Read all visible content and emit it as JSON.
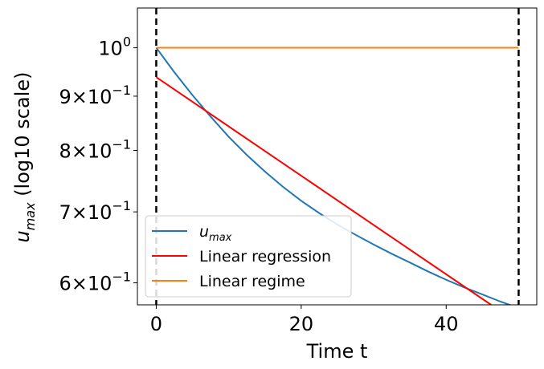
{
  "chart_data": {
    "type": "line",
    "title": "",
    "xlabel": "Time t",
    "ylabel": {
      "base": "u",
      "sub": "max",
      "rest": " (log10 scale)"
    },
    "xlim": [
      -2.6,
      52.5
    ],
    "ylim": [
      0.572,
      1.09
    ],
    "yscale": "log",
    "grid": false,
    "legend_position": "lower-left",
    "x_ticks": [
      {
        "value": 0,
        "label": "0"
      },
      {
        "value": 20,
        "label": "20"
      },
      {
        "value": 40,
        "label": "40"
      }
    ],
    "y_ticks": [
      {
        "value": 1.0,
        "mant": "",
        "base": "10",
        "exp": "0"
      },
      {
        "value": 0.9,
        "mant": "9",
        "base": "10",
        "exp": "−1"
      },
      {
        "value": 0.8,
        "mant": "8",
        "base": "10",
        "exp": "−1"
      },
      {
        "value": 0.7,
        "mant": "7",
        "base": "10",
        "exp": "−1"
      },
      {
        "value": 0.6,
        "mant": "6",
        "base": "10",
        "exp": "−1"
      }
    ],
    "vlines": [
      0,
      50
    ],
    "series": [
      {
        "key": "umax",
        "name": {
          "base": "u",
          "sub": "max"
        },
        "color": "#1f77b4",
        "x": [
          0,
          2.5,
          5,
          7.5,
          10,
          12.5,
          15,
          17.5,
          20,
          22.5,
          25,
          27.5,
          30,
          32.5,
          35,
          37.5,
          40,
          42.5,
          45,
          47.5,
          50
        ],
        "y": [
          1.0,
          0.948,
          0.902,
          0.861,
          0.824,
          0.792,
          0.764,
          0.739,
          0.717,
          0.698,
          0.681,
          0.666,
          0.652,
          0.639,
          0.627,
          0.615,
          0.604,
          0.594,
          0.585,
          0.576,
          0.568
        ]
      },
      {
        "key": "regression",
        "name": "Linear regression",
        "color": "#ff0000",
        "x": [
          0,
          46.2
        ],
        "y": [
          0.938,
          0.572
        ]
      },
      {
        "key": "regime",
        "name": "Linear regime",
        "color": "#ff7f0e",
        "x": [
          0,
          50
        ],
        "y": [
          1.0,
          1.0
        ]
      }
    ]
  }
}
